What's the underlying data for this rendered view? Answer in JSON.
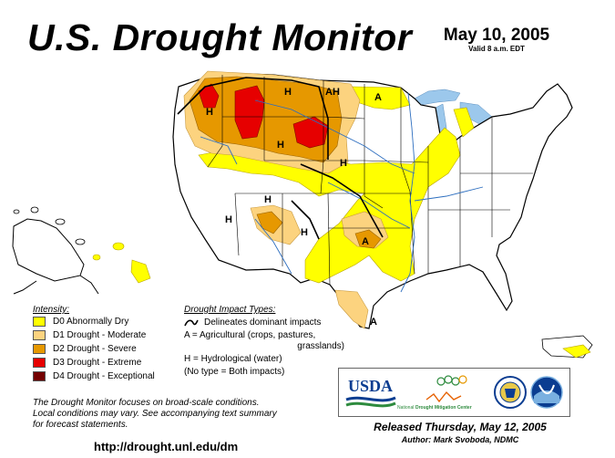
{
  "header": {
    "title": "U.S. Drought Monitor",
    "date": "May 10, 2005",
    "valid": "Valid 8 a.m. EDT"
  },
  "legend": {
    "intensity_title": "Intensity:",
    "items": [
      {
        "label": "D0 Abnormally Dry",
        "color": "#ffff00"
      },
      {
        "label": "D1 Drought - Moderate",
        "color": "#fcd37f"
      },
      {
        "label": "D2 Drought - Severe",
        "color": "#e69800"
      },
      {
        "label": "D3 Drought - Extreme",
        "color": "#e60000"
      },
      {
        "label": "D4 Drought - Exceptional",
        "color": "#730000"
      }
    ]
  },
  "impacts": {
    "title": "Drought Impact Types:",
    "delineates": "Delineates dominant impacts",
    "agricultural": "A = Agricultural (crops, pastures,",
    "agricultural_cont": "grasslands)",
    "hydrological": "H = Hydrological (water)",
    "both": "(No type = Both impacts)"
  },
  "note": {
    "line1": "The Drought Monitor focuses on broad-scale conditions.",
    "line2": "Local conditions may vary.  See accompanying text summary",
    "line3": "for forecast statements."
  },
  "footer": {
    "url": "http://drought.unl.edu/dm",
    "released": "Released Thursday, May 12, 2005",
    "author": "Author: Mark Svoboda, NDMC"
  },
  "logos": {
    "usda": "USDA",
    "ndmc_prefix": "National",
    "ndmc_name": "Drought Mitigation Center"
  },
  "map": {
    "impact_labels": [
      {
        "text": "H",
        "id": "impact-h-idaho"
      },
      {
        "text": "H",
        "id": "impact-h-montana"
      },
      {
        "text": "AH",
        "id": "impact-ah-dakota"
      },
      {
        "text": "A",
        "id": "impact-a-minnesota"
      },
      {
        "text": "H",
        "id": "impact-h-wyoming"
      },
      {
        "text": "H",
        "id": "impact-h-nebraska"
      },
      {
        "text": "H",
        "id": "impact-h-utah"
      },
      {
        "text": "H",
        "id": "impact-h-nevada"
      },
      {
        "text": "H",
        "id": "impact-h-newmexico"
      },
      {
        "text": "A",
        "id": "impact-a-oklahoma"
      },
      {
        "text": "A",
        "id": "impact-a-texas"
      }
    ]
  }
}
